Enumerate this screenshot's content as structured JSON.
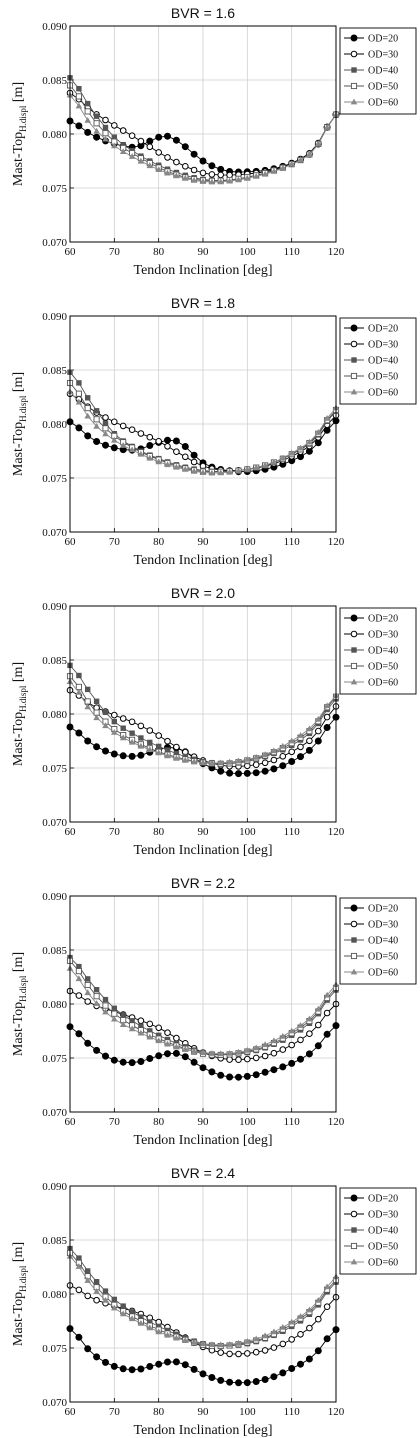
{
  "chart_data": [
    {
      "type": "line",
      "title": "BVR = 1.6",
      "xlabel": "Tendon Inclination [deg]",
      "ylabel": "Mast-Top",
      "ylabel_sub": "H.displ",
      "ylabel_unit": " [m]",
      "xlim": [
        60,
        120
      ],
      "ylim": [
        0.07,
        0.09
      ],
      "xticks": [
        "60",
        "70",
        "80",
        "90",
        "100",
        "110",
        "120"
      ],
      "yticks": [
        "0.070",
        "0.075",
        "0.080",
        "0.085",
        "0.090"
      ],
      "grid": true,
      "legend_position": "top-right",
      "series": [
        {
          "name": "OD=20",
          "x": [
            60,
            65,
            70,
            75,
            80,
            82,
            85,
            90,
            95,
            100,
            105,
            110,
            115,
            120
          ],
          "y": [
            0.0812,
            0.0799,
            0.0791,
            0.0788,
            0.0797,
            0.0798,
            0.0791,
            0.0775,
            0.0766,
            0.0765,
            0.0767,
            0.0773,
            0.0785,
            0.0818
          ]
        },
        {
          "name": "OD=30",
          "x": [
            60,
            65,
            70,
            75,
            80,
            85,
            90,
            95,
            100,
            105,
            110,
            115,
            120
          ],
          "y": [
            0.0838,
            0.0821,
            0.0808,
            0.0796,
            0.0783,
            0.0772,
            0.0764,
            0.0762,
            0.0763,
            0.0766,
            0.0773,
            0.0786,
            0.0818
          ]
        },
        {
          "name": "OD=40",
          "x": [
            60,
            65,
            70,
            75,
            80,
            85,
            90,
            95,
            100,
            105,
            110,
            115,
            120
          ],
          "y": [
            0.0852,
            0.0822,
            0.0797,
            0.0782,
            0.0771,
            0.0763,
            0.0758,
            0.0757,
            0.076,
            0.0765,
            0.0772,
            0.0785,
            0.0818
          ]
        },
        {
          "name": "OD=50",
          "x": [
            60,
            65,
            70,
            75,
            80,
            85,
            90,
            95,
            100,
            105,
            110,
            115,
            120
          ],
          "y": [
            0.0845,
            0.0815,
            0.0793,
            0.078,
            0.0769,
            0.0761,
            0.0757,
            0.0757,
            0.076,
            0.0765,
            0.0772,
            0.0785,
            0.0818
          ]
        },
        {
          "name": "OD=60",
          "x": [
            60,
            65,
            70,
            75,
            80,
            85,
            90,
            95,
            100,
            105,
            110,
            115,
            120
          ],
          "y": [
            0.0836,
            0.0807,
            0.0789,
            0.0777,
            0.0767,
            0.076,
            0.0756,
            0.0756,
            0.0759,
            0.0764,
            0.0772,
            0.0785,
            0.0818
          ]
        }
      ]
    },
    {
      "type": "line",
      "title": "BVR = 1.8",
      "xlabel": "Tendon Inclination [deg]",
      "ylabel": "Mast-Top",
      "ylabel_sub": "H.displ",
      "ylabel_unit": " [m]",
      "xlim": [
        60,
        120
      ],
      "ylim": [
        0.07,
        0.09
      ],
      "xticks": [
        "60",
        "70",
        "80",
        "90",
        "100",
        "110",
        "120"
      ],
      "yticks": [
        "0.070",
        "0.075",
        "0.080",
        "0.085",
        "0.090"
      ],
      "grid": true,
      "legend_position": "top-right",
      "series": [
        {
          "name": "OD=20",
          "x": [
            60,
            65,
            70,
            75,
            80,
            82,
            85,
            90,
            95,
            100,
            105,
            110,
            115,
            120
          ],
          "y": [
            0.0802,
            0.0786,
            0.0778,
            0.0776,
            0.0783,
            0.0785,
            0.0782,
            0.0764,
            0.0757,
            0.0756,
            0.0759,
            0.0766,
            0.0778,
            0.0803
          ]
        },
        {
          "name": "OD=30",
          "x": [
            60,
            65,
            70,
            75,
            80,
            85,
            90,
            95,
            100,
            105,
            110,
            115,
            120
          ],
          "y": [
            0.0828,
            0.0813,
            0.0802,
            0.0793,
            0.0784,
            0.0772,
            0.0761,
            0.0757,
            0.0758,
            0.0762,
            0.077,
            0.0783,
            0.0808
          ]
        },
        {
          "name": "OD=40",
          "x": [
            60,
            65,
            70,
            75,
            80,
            85,
            90,
            95,
            100,
            105,
            110,
            115,
            120
          ],
          "y": [
            0.0848,
            0.0818,
            0.0791,
            0.0777,
            0.0768,
            0.0761,
            0.0757,
            0.0756,
            0.0758,
            0.0763,
            0.0772,
            0.0785,
            0.0812
          ]
        },
        {
          "name": "OD=50",
          "x": [
            60,
            65,
            70,
            75,
            80,
            85,
            90,
            95,
            100,
            105,
            110,
            115,
            120
          ],
          "y": [
            0.0838,
            0.0809,
            0.0789,
            0.0776,
            0.0767,
            0.076,
            0.0756,
            0.0756,
            0.0758,
            0.0763,
            0.0772,
            0.0786,
            0.0813
          ]
        },
        {
          "name": "OD=60",
          "x": [
            60,
            65,
            70,
            75,
            80,
            85,
            90,
            95,
            100,
            105,
            110,
            115,
            120
          ],
          "y": [
            0.083,
            0.0802,
            0.0785,
            0.0774,
            0.0765,
            0.0759,
            0.0755,
            0.0755,
            0.0758,
            0.0763,
            0.0773,
            0.0787,
            0.0815
          ]
        }
      ]
    },
    {
      "type": "line",
      "title": "BVR = 2.0",
      "xlabel": "Tendon Inclination [deg]",
      "ylabel": "Mast-Top",
      "ylabel_sub": "H.displ",
      "ylabel_unit": " [m]",
      "xlim": [
        60,
        120
      ],
      "ylim": [
        0.07,
        0.09
      ],
      "xticks": [
        "60",
        "70",
        "80",
        "90",
        "100",
        "110",
        "120"
      ],
      "yticks": [
        "0.070",
        "0.075",
        "0.080",
        "0.085",
        "0.090"
      ],
      "grid": true,
      "legend_position": "top-right",
      "series": [
        {
          "name": "OD=20",
          "x": [
            60,
            65,
            70,
            75,
            80,
            82,
            85,
            90,
            95,
            100,
            105,
            110,
            115,
            120
          ],
          "y": [
            0.0788,
            0.0772,
            0.0763,
            0.0761,
            0.0767,
            0.0769,
            0.0767,
            0.0754,
            0.0746,
            0.0745,
            0.0748,
            0.0756,
            0.077,
            0.0797
          ]
        },
        {
          "name": "OD=30",
          "x": [
            60,
            65,
            70,
            75,
            80,
            85,
            90,
            95,
            100,
            105,
            110,
            115,
            120
          ],
          "y": [
            0.0822,
            0.0808,
            0.0799,
            0.0791,
            0.078,
            0.0767,
            0.0757,
            0.0752,
            0.0752,
            0.0756,
            0.0765,
            0.0779,
            0.0807
          ]
        },
        {
          "name": "OD=40",
          "x": [
            60,
            65,
            70,
            75,
            80,
            85,
            90,
            95,
            100,
            105,
            110,
            115,
            120
          ],
          "y": [
            0.0845,
            0.0817,
            0.0793,
            0.078,
            0.077,
            0.0762,
            0.0756,
            0.0754,
            0.0756,
            0.0762,
            0.0771,
            0.0786,
            0.0814
          ]
        },
        {
          "name": "OD=50",
          "x": [
            60,
            65,
            70,
            75,
            80,
            85,
            90,
            95,
            100,
            105,
            110,
            115,
            120
          ],
          "y": [
            0.0835,
            0.0806,
            0.0786,
            0.0774,
            0.0765,
            0.0759,
            0.0755,
            0.0754,
            0.0757,
            0.0763,
            0.0773,
            0.0788,
            0.0816
          ]
        },
        {
          "name": "OD=60",
          "x": [
            60,
            65,
            70,
            75,
            80,
            85,
            90,
            95,
            100,
            105,
            110,
            115,
            120
          ],
          "y": [
            0.083,
            0.0801,
            0.0783,
            0.0772,
            0.0764,
            0.0758,
            0.0755,
            0.0755,
            0.0758,
            0.0764,
            0.0775,
            0.079,
            0.0817
          ]
        }
      ]
    },
    {
      "type": "line",
      "title": "BVR = 2.2",
      "xlabel": "Tendon Inclination [deg]",
      "ylabel": "Mast-Top",
      "ylabel_sub": "H.displ",
      "ylabel_unit": " [m]",
      "xlim": [
        60,
        120
      ],
      "ylim": [
        0.07,
        0.09
      ],
      "xticks": [
        "60",
        "70",
        "80",
        "90",
        "100",
        "110",
        "120"
      ],
      "yticks": [
        "0.070",
        "0.075",
        "0.080",
        "0.085",
        "0.090"
      ],
      "grid": true,
      "legend_position": "top-right",
      "series": [
        {
          "name": "OD=20",
          "x": [
            60,
            65,
            70,
            75,
            80,
            82,
            85,
            90,
            95,
            100,
            105,
            110,
            115,
            120
          ],
          "y": [
            0.0779,
            0.076,
            0.0748,
            0.0746,
            0.0752,
            0.0754,
            0.0753,
            0.0741,
            0.0733,
            0.0733,
            0.0738,
            0.0745,
            0.0757,
            0.078
          ]
        },
        {
          "name": "OD=30",
          "x": [
            60,
            65,
            70,
            75,
            80,
            85,
            90,
            95,
            100,
            105,
            110,
            115,
            120
          ],
          "y": [
            0.0812,
            0.08,
            0.0793,
            0.0786,
            0.0778,
            0.0766,
            0.0755,
            0.0749,
            0.0749,
            0.0753,
            0.0762,
            0.0776,
            0.08
          ]
        },
        {
          "name": "OD=40",
          "x": [
            60,
            65,
            70,
            75,
            80,
            85,
            90,
            95,
            100,
            105,
            110,
            115,
            120
          ],
          "y": [
            0.0843,
            0.0818,
            0.0796,
            0.0782,
            0.0771,
            0.0762,
            0.0755,
            0.0753,
            0.0755,
            0.0761,
            0.0771,
            0.0786,
            0.0813
          ]
        },
        {
          "name": "OD=50",
          "x": [
            60,
            65,
            70,
            75,
            80,
            85,
            90,
            95,
            100,
            105,
            110,
            115,
            120
          ],
          "y": [
            0.084,
            0.0812,
            0.0791,
            0.0778,
            0.0768,
            0.076,
            0.0754,
            0.0753,
            0.0756,
            0.0762,
            0.0773,
            0.0788,
            0.0815
          ]
        },
        {
          "name": "OD=60",
          "x": [
            60,
            65,
            70,
            75,
            80,
            85,
            90,
            95,
            100,
            105,
            110,
            115,
            120
          ],
          "y": [
            0.0833,
            0.0805,
            0.0786,
            0.0775,
            0.0766,
            0.0759,
            0.0755,
            0.0754,
            0.0757,
            0.0764,
            0.0775,
            0.079,
            0.0818
          ]
        }
      ]
    },
    {
      "type": "line",
      "title": "BVR = 2.4",
      "xlabel": "Tendon Inclination [deg]",
      "ylabel": "Mast-Top",
      "ylabel_sub": "H.displ",
      "ylabel_unit": " [m]",
      "xlim": [
        60,
        120
      ],
      "ylim": [
        0.07,
        0.09
      ],
      "xticks": [
        "60",
        "70",
        "80",
        "90",
        "100",
        "110",
        "120"
      ],
      "yticks": [
        "0.070",
        "0.075",
        "0.080",
        "0.085",
        "0.090"
      ],
      "grid": true,
      "legend_position": "top-right",
      "series": [
        {
          "name": "OD=20",
          "x": [
            60,
            65,
            70,
            75,
            80,
            82,
            85,
            90,
            95,
            100,
            105,
            110,
            115,
            120
          ],
          "y": [
            0.0768,
            0.0745,
            0.0733,
            0.073,
            0.0735,
            0.0737,
            0.0736,
            0.0726,
            0.0719,
            0.0718,
            0.0722,
            0.0731,
            0.0743,
            0.0767
          ]
        },
        {
          "name": "OD=30",
          "x": [
            60,
            65,
            70,
            75,
            80,
            85,
            90,
            95,
            100,
            105,
            110,
            115,
            120
          ],
          "y": [
            0.0808,
            0.0796,
            0.0789,
            0.0783,
            0.0774,
            0.0762,
            0.0751,
            0.0745,
            0.0745,
            0.0749,
            0.0758,
            0.0772,
            0.0797
          ]
        },
        {
          "name": "OD=40",
          "x": [
            60,
            65,
            70,
            75,
            80,
            85,
            90,
            95,
            100,
            105,
            110,
            115,
            120
          ],
          "y": [
            0.0842,
            0.0816,
            0.0795,
            0.0781,
            0.077,
            0.0761,
            0.0754,
            0.0752,
            0.0754,
            0.076,
            0.077,
            0.0785,
            0.0811
          ]
        },
        {
          "name": "OD=50",
          "x": [
            60,
            65,
            70,
            75,
            80,
            85,
            90,
            95,
            100,
            105,
            110,
            115,
            120
          ],
          "y": [
            0.0838,
            0.0811,
            0.079,
            0.0777,
            0.0767,
            0.0759,
            0.0753,
            0.0752,
            0.0755,
            0.0761,
            0.0772,
            0.0787,
            0.0813
          ]
        },
        {
          "name": "OD=60",
          "x": [
            60,
            65,
            70,
            75,
            80,
            85,
            90,
            95,
            100,
            105,
            110,
            115,
            120
          ],
          "y": [
            0.0835,
            0.0807,
            0.0787,
            0.0775,
            0.0765,
            0.0758,
            0.0754,
            0.0753,
            0.0756,
            0.0763,
            0.0774,
            0.0789,
            0.0816
          ]
        }
      ]
    }
  ],
  "series_styles": [
    {
      "marker": "filled-circle",
      "color": "#000000"
    },
    {
      "marker": "open-circle",
      "color": "#000000"
    },
    {
      "marker": "filled-square",
      "color": "#555555"
    },
    {
      "marker": "open-square",
      "color": "#555555"
    },
    {
      "marker": "filled-triangle",
      "color": "#888888"
    }
  ]
}
